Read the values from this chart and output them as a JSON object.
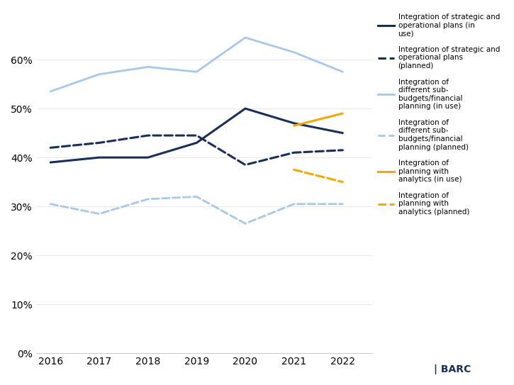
{
  "years": [
    2016,
    2017,
    2018,
    2019,
    2020,
    2021,
    2022
  ],
  "series": [
    {
      "label": "Integration of strategic and\noperational plans (in\nuse)",
      "color": "#1a2e5a",
      "linestyle": "solid",
      "linewidth": 2.2,
      "values": [
        0.39,
        0.4,
        0.4,
        0.43,
        0.5,
        0.47,
        0.45
      ]
    },
    {
      "label": "Integration of strategic and\noperational plans\n(planned)",
      "color": "#1a2e5a",
      "linestyle": "dashed",
      "linewidth": 2.2,
      "values": [
        0.42,
        0.43,
        0.445,
        0.445,
        0.385,
        0.41,
        0.415
      ]
    },
    {
      "label": "Integration of\ndifferent sub-\nbudgets/financial\nplanning (in use)",
      "color": "#a8c8e8",
      "linestyle": "solid",
      "linewidth": 2.0,
      "values": [
        0.535,
        0.57,
        0.585,
        0.575,
        0.645,
        0.615,
        0.575
      ]
    },
    {
      "label": "Integration of\ndifferent sub-\nbudgets/financial\nplanning (planned)",
      "color": "#a8c8e8",
      "linestyle": "dashed",
      "linewidth": 2.0,
      "values": [
        0.305,
        0.285,
        0.315,
        0.32,
        0.265,
        0.305,
        0.305
      ]
    },
    {
      "label": "Integration of\nplanning with\nanalytics (in use)",
      "color": "#f5a800",
      "linestyle": "solid",
      "linewidth": 2.2,
      "values": [
        null,
        null,
        null,
        null,
        null,
        0.465,
        0.49
      ]
    },
    {
      "label": "Integration of\nplanning with\nanalytics (planned)",
      "color": "#f5a800",
      "linestyle": "dashed",
      "linewidth": 2.2,
      "values": [
        null,
        null,
        null,
        null,
        null,
        0.375,
        0.35
      ]
    }
  ],
  "xlim": [
    2015.7,
    2022.6
  ],
  "ylim": [
    0,
    0.7
  ],
  "yticks": [
    0.0,
    0.1,
    0.2,
    0.3,
    0.4,
    0.5,
    0.6
  ],
  "xticks": [
    2016,
    2017,
    2018,
    2019,
    2020,
    2021,
    2022
  ],
  "background_color": "#ffffff"
}
